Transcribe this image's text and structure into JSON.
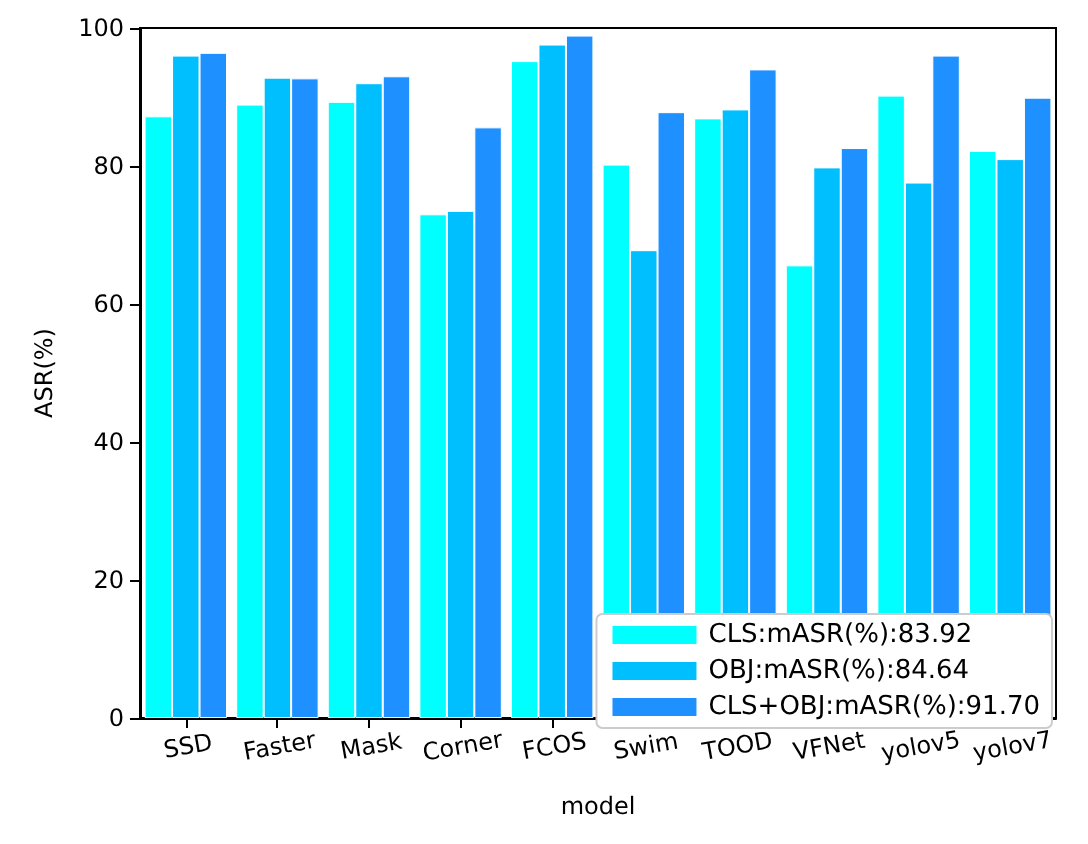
{
  "chart_data": {
    "type": "bar",
    "xlabel": "model",
    "ylabel": "ASR(%)",
    "categories": [
      "SSD",
      "Faster",
      "Mask",
      "Corner",
      "FCOS",
      "Swim",
      "TOOD",
      "VFNet",
      "yolov5",
      "yolov7"
    ],
    "series": [
      {
        "name": "CLS:mASR(%):83.92",
        "color": "#00ffff",
        "values": [
          87.2,
          88.9,
          89.3,
          73.0,
          95.2,
          80.2,
          86.9,
          65.6,
          90.2,
          82.2
        ]
      },
      {
        "name": "OBJ:mASR(%):84.64",
        "color": "#00bfff",
        "values": [
          96.0,
          92.8,
          92.0,
          73.5,
          97.6,
          67.8,
          88.2,
          79.8,
          77.6,
          81.0
        ]
      },
      {
        "name": "CLS+OBJ:mASR(%):91.70",
        "color": "#1e90ff",
        "values": [
          96.4,
          92.7,
          93.0,
          85.6,
          98.9,
          87.8,
          94.0,
          82.6,
          96.0,
          89.9
        ]
      }
    ],
    "ylim": [
      0,
      100
    ],
    "yticks": [
      0,
      20,
      40,
      60,
      80,
      100
    ],
    "grid": false,
    "legend": "bottom right"
  }
}
